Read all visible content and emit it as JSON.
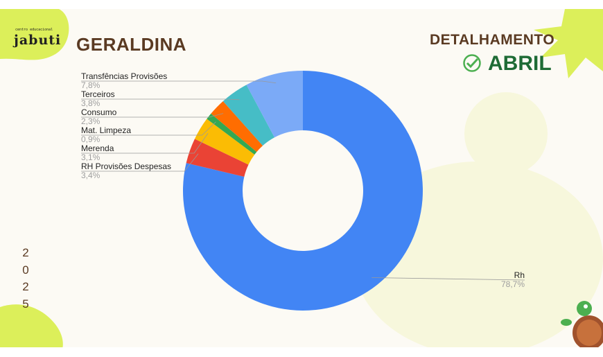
{
  "logo": {
    "small": "centro educacional",
    "name": "jabuti"
  },
  "header": {
    "title": "GERALDINA",
    "subtitle": "DETALHAMENTO",
    "month": "ABRIL"
  },
  "year_digits": [
    "2",
    "0",
    "2",
    "5"
  ],
  "chart_data": {
    "type": "pie",
    "donut": true,
    "title": "",
    "slices": [
      {
        "label": "Rh",
        "value": 78.7,
        "pct_label": "78,7%",
        "color": "#4285f4"
      },
      {
        "label": "RH Provisões Despesas",
        "value": 3.4,
        "pct_label": "3,4%",
        "color": "#ea4335"
      },
      {
        "label": "Merenda",
        "value": 3.1,
        "pct_label": "3,1%",
        "color": "#fbbc04"
      },
      {
        "label": "Mat. Limpeza",
        "value": 0.9,
        "pct_label": "0,9%",
        "color": "#34a853"
      },
      {
        "label": "Consumo",
        "value": 2.3,
        "pct_label": "2,3%",
        "color": "#ff6d01"
      },
      {
        "label": "Terceiros",
        "value": 3.8,
        "pct_label": "3,8%",
        "color": "#46bdc6"
      },
      {
        "label": "Transfências Provisões",
        "value": 7.8,
        "pct_label": "7,8%",
        "color": "#7baaf7"
      }
    ]
  }
}
